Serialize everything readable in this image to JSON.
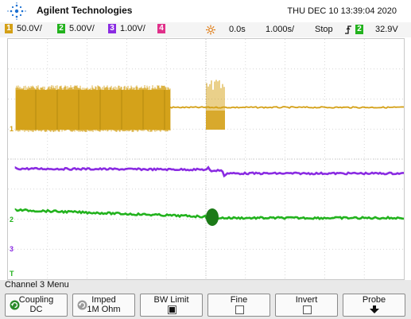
{
  "header": {
    "brand": "Agilent Technologies",
    "datetime": "THU DEC 10 13:39:04 2020",
    "logo_icon": "agilent-spark-logo"
  },
  "channels": [
    {
      "num": "1",
      "scale": "50.0V/",
      "color": "#d4a016"
    },
    {
      "num": "2",
      "scale": "5.00V/",
      "color": "#22b21d"
    },
    {
      "num": "3",
      "scale": "1.00V/",
      "color": "#8a2be2"
    },
    {
      "num": "4",
      "scale": "",
      "color": "#e0308a"
    }
  ],
  "timebase": {
    "trigger_icon": "trigger-position-icon",
    "delay": "0.0s",
    "scale": "1.000s/",
    "run_state": "Stop",
    "trigger_edge_icon": "rising-edge-icon",
    "trigger_channel": "2",
    "trigger_level": "32.9V"
  },
  "markers": {
    "ch1": "1",
    "ch2": "2",
    "ch3": "3",
    "trig": "T"
  },
  "menu": {
    "title": "Channel 3  Menu",
    "keys": [
      {
        "line1": "Coupling",
        "line2": "DC",
        "icon": "rotate-knob-icon"
      },
      {
        "line1": "Imped",
        "line2": "1M Ohm",
        "icon": "rotate-knob-icon"
      },
      {
        "line1": "BW Limit",
        "line2": "",
        "icon": "checkbox-checked-icon"
      },
      {
        "line1": "Fine",
        "line2": "",
        "icon": "checkbox-empty-icon"
      },
      {
        "line1": "Invert",
        "line2": "",
        "icon": "checkbox-empty-icon"
      },
      {
        "line1": "Probe",
        "line2": "",
        "icon": "arrow-down-icon"
      }
    ]
  },
  "colors": {
    "ch1_trace": "#d4a016",
    "ch2_trace": "#22b21d",
    "ch3_trace": "#8a2be2",
    "trigger_marker": "#e07a10",
    "grid": "#c8c8c8"
  }
}
